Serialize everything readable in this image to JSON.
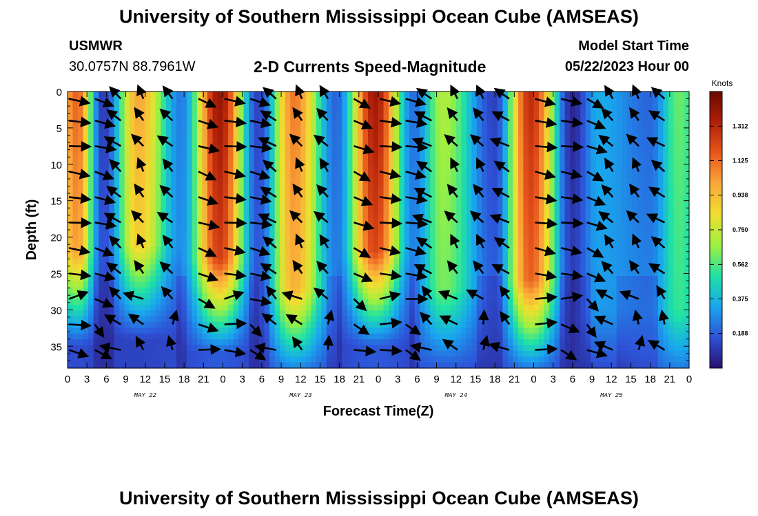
{
  "header": {
    "title": "University of Southern Mississippi Ocean Cube (AMSEAS)",
    "station": "USMWR",
    "coordinates": "30.0757N  88.7961W",
    "subtitle": "2-D Currents Speed-Magnitude",
    "model_start_label": "Model Start Time",
    "model_start_value": "05/22/2023 Hour 00"
  },
  "footer": {
    "title": "University of Southern Mississippi Ocean Cube (AMSEAS)"
  },
  "chart_data": {
    "type": "heatmap",
    "title": "2-D Currents Speed-Magnitude",
    "xlabel": "Forecast Time(Z)",
    "ylabel": "Depth (ft)",
    "x_hours_range": [
      0,
      96
    ],
    "ylim": [
      0,
      38
    ],
    "y_inverted": true,
    "x_ticks": [
      "0",
      "3",
      "6",
      "9",
      "12",
      "15",
      "18",
      "21",
      "0",
      "3",
      "6",
      "9",
      "12",
      "15",
      "18",
      "21",
      "0",
      "3",
      "6",
      "9",
      "12",
      "15",
      "18",
      "21",
      "0",
      "3",
      "6",
      "9",
      "12",
      "15",
      "18",
      "21",
      "0"
    ],
    "y_ticks": [
      0,
      5,
      10,
      15,
      20,
      25,
      30,
      35
    ],
    "y_tick_labels": [
      "0",
      "5",
      "10",
      "15",
      "20",
      "25",
      "30",
      "35"
    ],
    "date_labels": [
      {
        "hour": 12,
        "label": "MAY 22"
      },
      {
        "hour": 36,
        "label": "MAY 23"
      },
      {
        "hour": 60,
        "label": "MAY 24"
      },
      {
        "hour": 84,
        "label": "MAY 25"
      }
    ],
    "colorbar": {
      "unit": "Knots",
      "min": 0,
      "max": 1.5,
      "ticks": [
        0.188,
        0.375,
        0.562,
        0.75,
        0.938,
        1.125,
        1.312
      ],
      "tick_labels": [
        "0.188",
        "0.375",
        "0.562",
        "0.750",
        "0.938",
        "1.125",
        "1.312"
      ],
      "colors": [
        "#2a0f6e",
        "#2e53d8",
        "#19a6ee",
        "#1fe2a5",
        "#9ef040",
        "#f0de30",
        "#faa83a",
        "#e8561c",
        "#b02008",
        "#6a0a00"
      ]
    },
    "speed_peaks": [
      {
        "hour": 1.5,
        "speed": 1.15,
        "depth": 22
      },
      {
        "hour": 11,
        "speed": 1.0,
        "depth": 21
      },
      {
        "hour": 23.5,
        "speed": 1.4,
        "depth": 23
      },
      {
        "hour": 35,
        "speed": 1.1,
        "depth": 27
      },
      {
        "hour": 47.5,
        "speed": 1.38,
        "depth": 22
      },
      {
        "hour": 58,
        "speed": 0.7,
        "depth": 27
      },
      {
        "hour": 71.5,
        "speed": 1.3,
        "depth": 26
      },
      {
        "hour": 82,
        "speed": 0.35,
        "depth": 30
      },
      {
        "hour": 94.5,
        "speed": 0.6,
        "depth": 30
      }
    ],
    "speed_troughs": [
      {
        "hour": 5.5,
        "speed": 0.1
      },
      {
        "hour": 17.5,
        "speed": 0.25
      },
      {
        "hour": 29.5,
        "speed": 0.12
      },
      {
        "hour": 41.5,
        "speed": 0.2
      },
      {
        "hour": 53.5,
        "speed": 0.22
      },
      {
        "hour": 66,
        "speed": 0.12
      },
      {
        "hour": 78,
        "speed": 0.05
      },
      {
        "hour": 90,
        "speed": 0.2
      }
    ],
    "arrow_columns_hours": [
      1.5,
      5.5,
      9.5,
      13,
      17.5,
      21.5,
      25.5,
      29.5,
      33.5,
      37.5,
      41.5,
      45.5,
      49.5,
      53.5,
      57.5,
      61.5,
      65.5,
      69.5,
      73.5,
      77.5,
      81.5,
      85.5,
      89.5,
      93.5
    ],
    "arrow_rows_depth": [
      1,
      4,
      7.5,
      11,
      14.5,
      18,
      21.5,
      25,
      28.5,
      32,
      35.5
    ]
  }
}
